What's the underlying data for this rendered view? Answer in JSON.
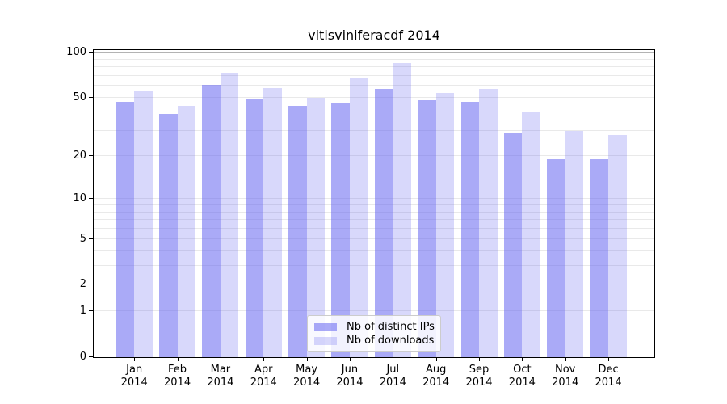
{
  "title": "vitisviniferacdf 2014",
  "chart_data": {
    "type": "bar",
    "title": "vitisviniferacdf 2014",
    "scale": "log1p",
    "categories": [
      "Jan 2014",
      "Feb 2014",
      "Mar 2014",
      "Apr 2014",
      "May 2014",
      "Jun 2014",
      "Jul 2014",
      "Aug 2014",
      "Sep 2014",
      "Oct 2014",
      "Nov 2014",
      "Dec 2014"
    ],
    "month_labels": [
      "Jan",
      "Feb",
      "Mar",
      "Apr",
      "May",
      "Jun",
      "Jul",
      "Aug",
      "Sep",
      "Oct",
      "Nov",
      "Dec"
    ],
    "year_label": "2014",
    "series": [
      {
        "name": "Nb of distinct IPs",
        "color": "rgba(100,100,240,0.55)",
        "color_hex_on_white": "#a7a7f6",
        "values": [
          47,
          39,
          61,
          49,
          44,
          46,
          57,
          48,
          47,
          29,
          19,
          19
        ]
      },
      {
        "name": "Nb of downloads",
        "color": "rgba(100,100,240,0.25)",
        "color_hex_on_white": "#d8d8f8",
        "values": [
          55,
          44,
          73,
          58,
          50,
          68,
          85,
          54,
          57,
          40,
          30,
          28
        ]
      }
    ],
    "xlabel": "",
    "ylabel": "",
    "yticks": [
      0,
      1,
      2,
      5,
      10,
      20,
      50,
      100
    ],
    "gridline_values": [
      1,
      2,
      3,
      4,
      5,
      6,
      7,
      8,
      9,
      10,
      20,
      30,
      40,
      50,
      60,
      70,
      80,
      90,
      100
    ],
    "grid_color": "#e9e9e9",
    "grid_top_color": "#b3b3b3",
    "axis_color": "#000000",
    "ylim": [
      0,
      105
    ],
    "grid": true,
    "legend_position": "lower center"
  },
  "legend": {
    "items": [
      "Nb of distinct IPs",
      "Nb of downloads"
    ]
  }
}
